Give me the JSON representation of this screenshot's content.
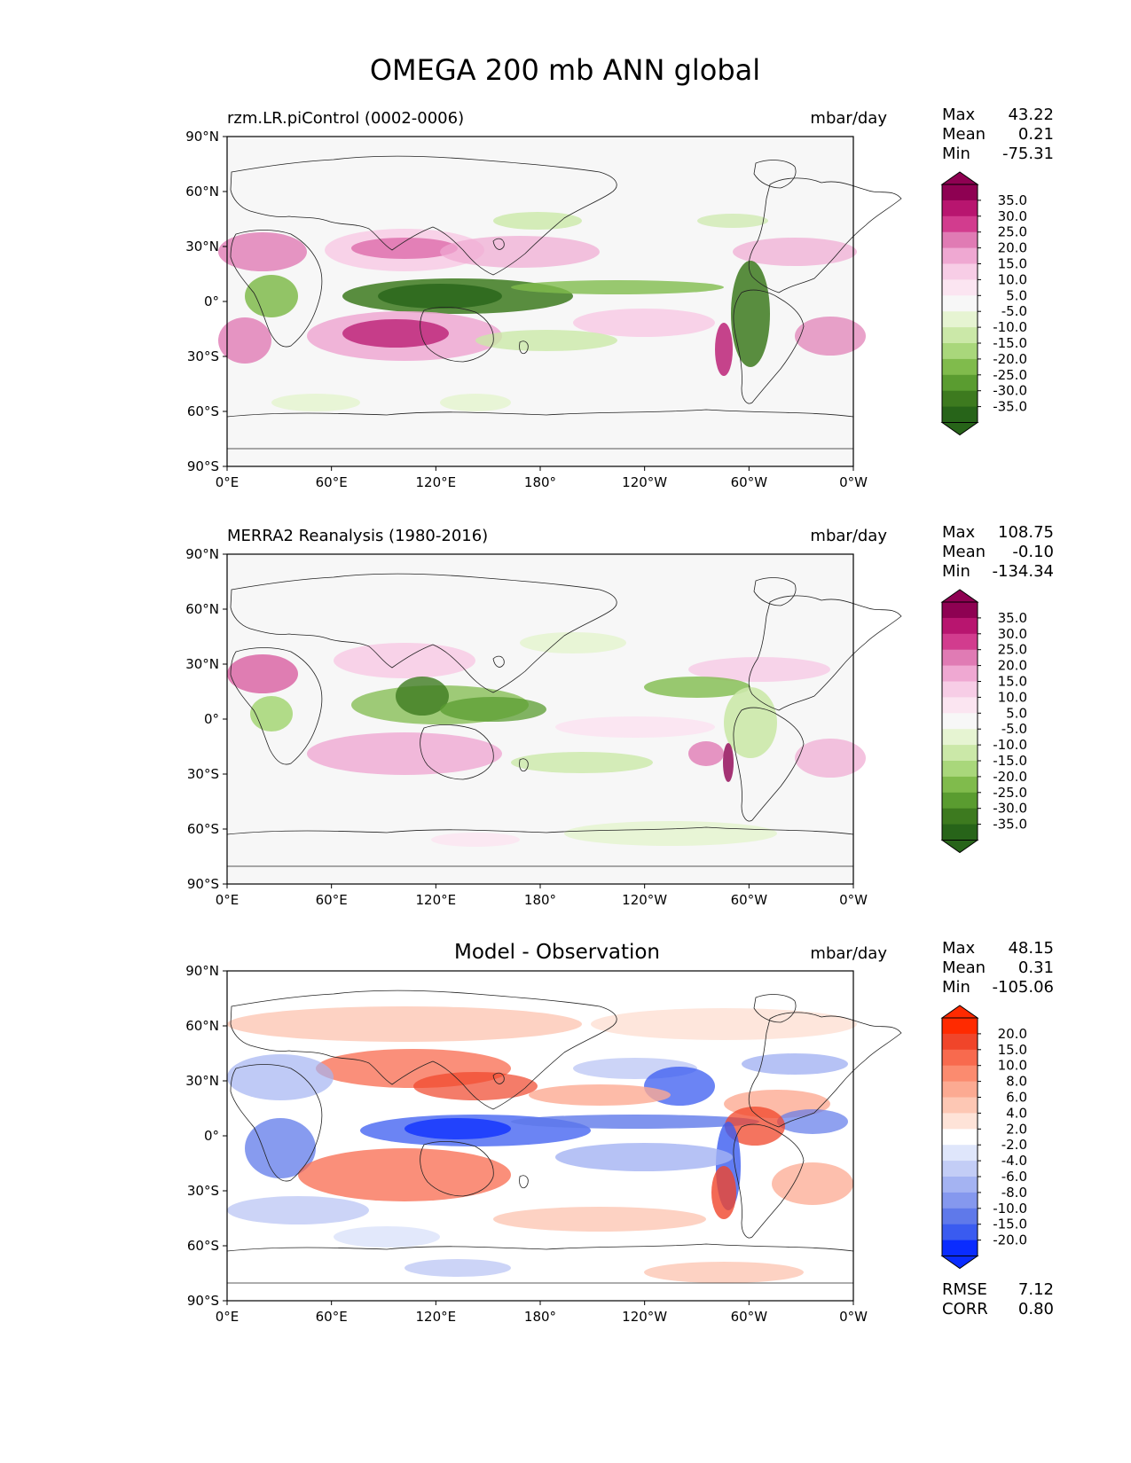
{
  "figure": {
    "title": "OMEGA 200 mb ANN global"
  },
  "axes": {
    "lat_labels": [
      "90°N",
      "60°N",
      "30°N",
      "0°",
      "30°S",
      "60°S",
      "90°S"
    ],
    "lon_labels": [
      "0°E",
      "60°E",
      "120°E",
      "180°",
      "120°W",
      "60°W",
      "0°W"
    ]
  },
  "panels": [
    {
      "left_title": "rzm.LR.piControl (0002-0006)",
      "center_title": "",
      "units": "mbar/day",
      "stats": [
        {
          "label": "Max",
          "value": "43.22"
        },
        {
          "label": "Mean",
          "value": "0.21"
        },
        {
          "label": "Min",
          "value": "-75.31"
        }
      ],
      "colorbar": {
        "ticks": [
          "35.0",
          "30.0",
          "25.0",
          "20.0",
          "15.0",
          "10.0",
          "5.0",
          "-5.0",
          "-10.0",
          "-15.0",
          "-20.0",
          "-25.0",
          "-30.0",
          "-35.0"
        ],
        "colors": [
          "#8e0152",
          "#b8156f",
          "#d23c8e",
          "#e07bb4",
          "#efa8d2",
          "#f7cde6",
          "#fbe5f1",
          "#f7f7f7",
          "#e6f4d2",
          "#cbe8a8",
          "#a9d77b",
          "#80bb4c",
          "#5a9c30",
          "#3d7a1f",
          "#276419"
        ],
        "end_top": "#8e0152",
        "end_bottom": "#276419"
      },
      "footer_stats": []
    },
    {
      "left_title": "MERRA2 Reanalysis (1980-2016)",
      "center_title": "",
      "units": "mbar/day",
      "stats": [
        {
          "label": "Max",
          "value": "108.75"
        },
        {
          "label": "Mean",
          "value": "-0.10"
        },
        {
          "label": "Min",
          "value": "-134.34"
        }
      ],
      "colorbar": {
        "ticks": [
          "35.0",
          "30.0",
          "25.0",
          "20.0",
          "15.0",
          "10.0",
          "5.0",
          "-5.0",
          "-10.0",
          "-15.0",
          "-20.0",
          "-25.0",
          "-30.0",
          "-35.0"
        ],
        "colors": [
          "#8e0152",
          "#b8156f",
          "#d23c8e",
          "#e07bb4",
          "#efa8d2",
          "#f7cde6",
          "#fbe5f1",
          "#f7f7f7",
          "#e6f4d2",
          "#cbe8a8",
          "#a9d77b",
          "#80bb4c",
          "#5a9c30",
          "#3d7a1f",
          "#276419"
        ],
        "end_top": "#8e0152",
        "end_bottom": "#276419"
      },
      "footer_stats": []
    },
    {
      "left_title": "",
      "center_title": "Model - Observation",
      "units": "mbar/day",
      "stats": [
        {
          "label": "Max",
          "value": "48.15"
        },
        {
          "label": "Mean",
          "value": "0.31"
        },
        {
          "label": "Min",
          "value": "-105.06"
        }
      ],
      "colorbar": {
        "ticks": [
          "20.0",
          "15.0",
          "10.0",
          "8.0",
          "6.0",
          "4.0",
          "2.0",
          "-2.0",
          "-4.0",
          "-6.0",
          "-8.0",
          "-10.0",
          "-15.0",
          "-20.0"
        ],
        "colors": [
          "#ff2a00",
          "#f0452a",
          "#f86a4e",
          "#fb8b6f",
          "#fcaa92",
          "#fdc7b4",
          "#fee3d8",
          "#ffffff",
          "#dfe6fb",
          "#c3cdf6",
          "#a4b3f2",
          "#8598ee",
          "#5f79ea",
          "#3a5bf0",
          "#0a2cff"
        ],
        "end_top": "#ff2a00",
        "end_bottom": "#0a2cff"
      },
      "footer_stats": [
        {
          "label": "RMSE",
          "value": "7.12"
        },
        {
          "label": "CORR",
          "value": "0.80"
        }
      ]
    }
  ]
}
